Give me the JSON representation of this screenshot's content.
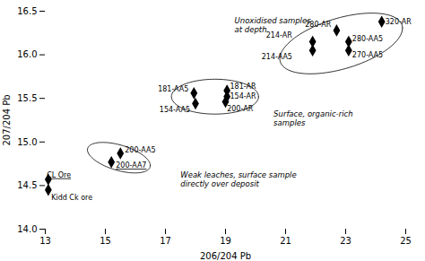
{
  "chart_data": {
    "type": "scatter",
    "xlabel": "206/204 Pb",
    "ylabel": "207/204 Pb",
    "xlim": [
      13.0,
      25.0
    ],
    "ylim": [
      14.0,
      16.5
    ],
    "xticks": [
      13,
      15,
      17,
      19,
      21,
      23,
      25
    ],
    "yticks": [
      {
        "value": 14.0,
        "label": "14.0"
      },
      14.5,
      {
        "value": 15.0,
        "label": "15.0"
      },
      15.5,
      {
        "value": 16.0,
        "label": "16.0"
      },
      16.5
    ],
    "color": "black",
    "marker": "diamond",
    "points": [
      {
        "x": 13.1,
        "y": 14.45,
        "label": "Kidd Ck ore",
        "label_dx": 0.1,
        "label_dy": -0.09,
        "underline": false
      },
      {
        "x": 13.1,
        "y": 14.57,
        "label": "CL Ore",
        "label_dx": -0.05,
        "label_dy": 0.05,
        "underline": true
      },
      {
        "x": 15.5,
        "y": 14.87,
        "label": "200-AA5",
        "label_dx": 0.15,
        "label_dy": 0.04,
        "underline": false
      },
      {
        "x": 15.2,
        "y": 14.77,
        "label": "200-AA7",
        "label_dx": 0.15,
        "label_dy": -0.04,
        "underline": true
      },
      {
        "x": 17.95,
        "y": 15.56,
        "label": "181-AA5",
        "label_dx": -1.2,
        "label_dy": 0.05,
        "underline": false
      },
      {
        "x": 18.0,
        "y": 15.44,
        "label": "154-AA5",
        "label_dx": -1.2,
        "label_dy": -0.07,
        "underline": false
      },
      {
        "x": 19.05,
        "y": 15.59,
        "label": "181-AR",
        "label_dx": 0.1,
        "label_dy": 0.05,
        "underline": false
      },
      {
        "x": 19.05,
        "y": 15.52,
        "label": "154-AR",
        "label_dx": 0.1,
        "label_dy": 0.0,
        "underline": false
      },
      {
        "x": 19.0,
        "y": 15.46,
        "label": "200-AR",
        "label_dx": 0.05,
        "label_dy": -0.08,
        "underline": false
      },
      {
        "x": 21.9,
        "y": 16.15,
        "label": "214-AR",
        "label_dx": -1.55,
        "label_dy": 0.07,
        "underline": false
      },
      {
        "x": 21.9,
        "y": 16.05,
        "label": "214-AA5",
        "label_dx": -1.7,
        "label_dy": -0.07,
        "underline": false
      },
      {
        "x": 22.7,
        "y": 16.28,
        "label": "280-AR",
        "label_dx": -1.05,
        "label_dy": 0.07,
        "underline": false
      },
      {
        "x": 23.1,
        "y": 16.15,
        "label": "280-AA5",
        "label_dx": 0.12,
        "label_dy": 0.03,
        "underline": false
      },
      {
        "x": 23.1,
        "y": 16.05,
        "label": "270-AA5",
        "label_dx": 0.12,
        "label_dy": -0.05,
        "underline": false
      },
      {
        "x": 24.2,
        "y": 16.38,
        "label": "320-AR",
        "label_dx": 0.12,
        "label_dy": 0.0,
        "underline": false
      }
    ],
    "ellipses": [
      {
        "cx": 15.45,
        "cy": 14.82,
        "width": 2.1,
        "height": 0.3,
        "angle": -5
      },
      {
        "cx": 18.65,
        "cy": 15.52,
        "width": 2.9,
        "height": 0.4,
        "angle": 0
      },
      {
        "cx": 22.85,
        "cy": 16.13,
        "width": 4.1,
        "height": 0.6,
        "angle": 5
      }
    ],
    "annotations": [
      {
        "text": "Unoxidised samples\nat depth",
        "x": 19.3,
        "y": 16.44
      },
      {
        "text": "Surface, organic-rich\nsamples",
        "x": 20.6,
        "y": 15.37
      },
      {
        "text": "Weak leaches, surface sample\ndirectly over deposit",
        "x": 17.5,
        "y": 14.67
      }
    ]
  }
}
